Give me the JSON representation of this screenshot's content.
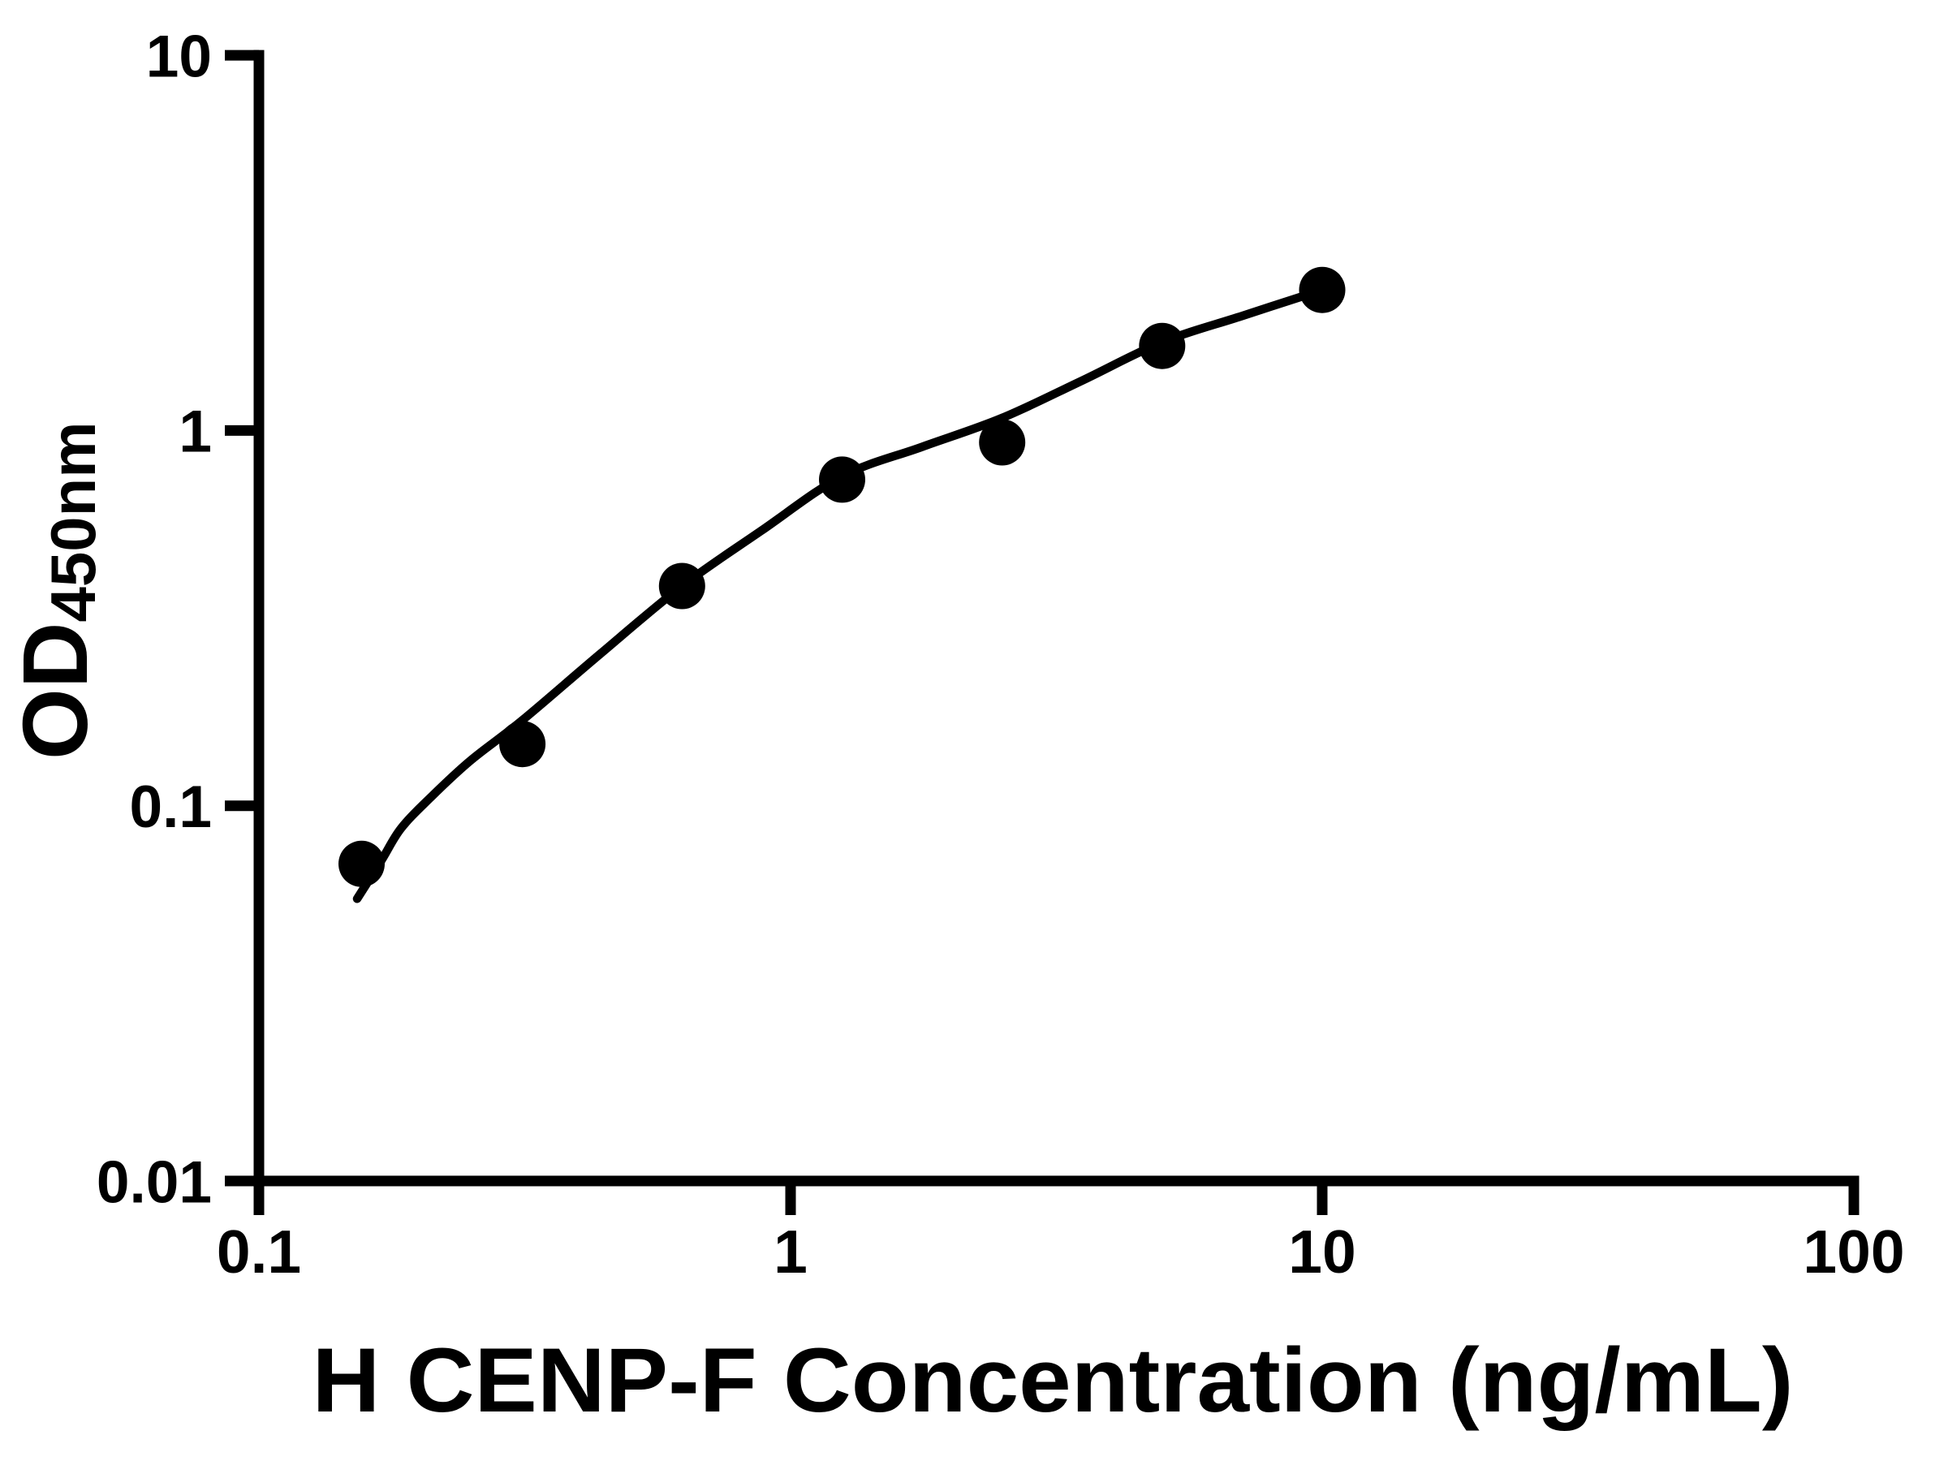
{
  "figure": {
    "description": "ELISA standard curve, log-log scatter plot with fitted curve",
    "background_color": "#ffffff",
    "foreground_color": "#000000"
  },
  "chart_data": {
    "type": "scatter",
    "title": "",
    "xlabel": "H CENP-F Concentration (ng/mL)",
    "ylabel": "OD450nm",
    "ylabel_main": "OD",
    "ylabel_sub": "450nm",
    "x_scale": "log",
    "y_scale": "log",
    "xlim": [
      0.1,
      100
    ],
    "ylim": [
      0.01,
      10
    ],
    "x_ticks": [
      "0.1",
      "1",
      "10",
      "100"
    ],
    "y_ticks": [
      "0.01",
      "0.1",
      "1",
      "10"
    ],
    "x_tick_values": [
      0.1,
      1,
      10,
      100
    ],
    "y_tick_values": [
      0.01,
      0.1,
      1,
      10
    ],
    "grid": false,
    "legend": false,
    "marker_color": "#000000",
    "line_color": "#000000",
    "series": [
      {
        "name": "standard-points",
        "type": "scatter",
        "marker": "filled-circle",
        "points": [
          {
            "x": 0.156,
            "y": 0.07
          },
          {
            "x": 0.313,
            "y": 0.146
          },
          {
            "x": 0.625,
            "y": 0.385
          },
          {
            "x": 1.25,
            "y": 0.74
          },
          {
            "x": 2.5,
            "y": 0.93
          },
          {
            "x": 5,
            "y": 1.68
          },
          {
            "x": 10,
            "y": 2.37
          }
        ]
      },
      {
        "name": "fit-curve",
        "type": "line",
        "points": [
          {
            "x": 0.153,
            "y": 0.0565
          },
          {
            "x": 0.17,
            "y": 0.0715
          },
          {
            "x": 0.185,
            "y": 0.087
          },
          {
            "x": 0.21,
            "y": 0.105
          },
          {
            "x": 0.25,
            "y": 0.132
          },
          {
            "x": 0.313,
            "y": 0.169
          },
          {
            "x": 0.44,
            "y": 0.255
          },
          {
            "x": 0.625,
            "y": 0.385
          },
          {
            "x": 0.88,
            "y": 0.54
          },
          {
            "x": 1.25,
            "y": 0.755
          },
          {
            "x": 1.77,
            "y": 0.905
          },
          {
            "x": 2.5,
            "y": 1.08
          },
          {
            "x": 3.54,
            "y": 1.36
          },
          {
            "x": 5,
            "y": 1.72
          },
          {
            "x": 7.07,
            "y": 2.02
          },
          {
            "x": 10,
            "y": 2.37
          }
        ]
      }
    ]
  }
}
